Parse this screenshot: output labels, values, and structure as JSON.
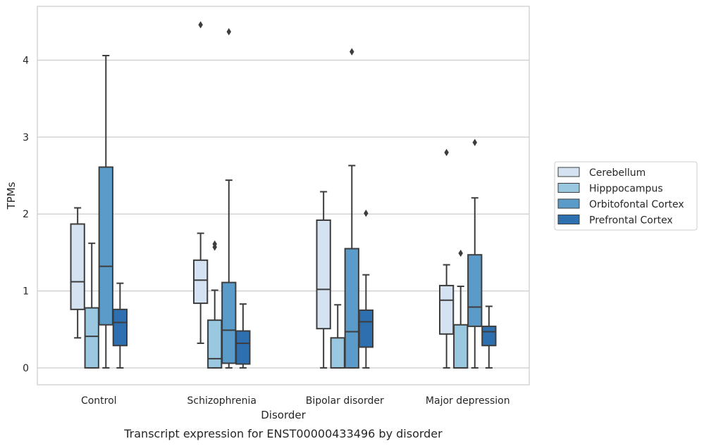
{
  "chart_data": {
    "type": "box",
    "xlabel": "Disorder",
    "ylabel": "TPMs",
    "caption": "Transcript expression for ENST00000433496 by disorder",
    "ylim": [
      -0.22,
      4.7
    ],
    "yticks": [
      "0",
      "1",
      "2",
      "3",
      "4"
    ],
    "grid": true,
    "legend_position": "right",
    "categories": [
      "Control",
      "Schizophrenia",
      "Bipolar disorder",
      "Major depression"
    ],
    "series": [
      {
        "name": "Cerebellum",
        "color": "#d4e2f1",
        "boxes": [
          {
            "whisker_low": 0.39,
            "q1": 0.76,
            "median": 1.12,
            "q3": 1.87,
            "whisker_high": 2.08,
            "outliers": []
          },
          {
            "whisker_low": 0.32,
            "q1": 0.84,
            "median": 1.14,
            "q3": 1.4,
            "whisker_high": 1.75,
            "outliers": [
              4.46
            ]
          },
          {
            "whisker_low": 0.0,
            "q1": 0.51,
            "median": 1.02,
            "q3": 1.92,
            "whisker_high": 2.29,
            "outliers": []
          },
          {
            "whisker_low": 0.0,
            "q1": 0.44,
            "median": 0.88,
            "q3": 1.07,
            "whisker_high": 1.34,
            "outliers": [
              2.8
            ]
          }
        ]
      },
      {
        "name": "Hipppocampus",
        "color": "#9ac8e0",
        "boxes": [
          {
            "whisker_low": 0.0,
            "q1": 0.0,
            "median": 0.41,
            "q3": 0.78,
            "whisker_high": 1.62,
            "outliers": []
          },
          {
            "whisker_low": 0.0,
            "q1": 0.0,
            "median": 0.12,
            "q3": 0.62,
            "whisker_high": 1.01,
            "outliers": [
              1.57,
              1.61
            ]
          },
          {
            "whisker_low": 0.0,
            "q1": 0.0,
            "median": 0.0,
            "q3": 0.39,
            "whisker_high": 0.82,
            "outliers": []
          },
          {
            "whisker_low": 0.0,
            "q1": 0.0,
            "median": 0.0,
            "q3": 0.56,
            "whisker_high": 1.06,
            "outliers": [
              1.49
            ]
          }
        ]
      },
      {
        "name": "Orbitofontal Cortex",
        "color": "#5b9bc9",
        "boxes": [
          {
            "whisker_low": 0.0,
            "q1": 0.56,
            "median": 1.32,
            "q3": 2.61,
            "whisker_high": 4.06,
            "outliers": []
          },
          {
            "whisker_low": 0.0,
            "q1": 0.06,
            "median": 0.49,
            "q3": 1.11,
            "whisker_high": 2.44,
            "outliers": [
              4.37
            ]
          },
          {
            "whisker_low": 0.0,
            "q1": 0.0,
            "median": 0.47,
            "q3": 1.55,
            "whisker_high": 2.63,
            "outliers": [
              4.11
            ]
          },
          {
            "whisker_low": 0.0,
            "q1": 0.54,
            "median": 0.79,
            "q3": 1.47,
            "whisker_high": 2.21,
            "outliers": [
              2.93
            ]
          }
        ]
      },
      {
        "name": "Prefrontal Cortex",
        "color": "#2e6fb0",
        "boxes": [
          {
            "whisker_low": 0.0,
            "q1": 0.29,
            "median": 0.59,
            "q3": 0.76,
            "whisker_high": 1.1,
            "outliers": []
          },
          {
            "whisker_low": 0.0,
            "q1": 0.05,
            "median": 0.32,
            "q3": 0.48,
            "whisker_high": 0.83,
            "outliers": []
          },
          {
            "whisker_low": 0.0,
            "q1": 0.27,
            "median": 0.6,
            "q3": 0.75,
            "whisker_high": 1.21,
            "outliers": [
              2.01
            ]
          },
          {
            "whisker_low": 0.0,
            "q1": 0.29,
            "median": 0.47,
            "q3": 0.54,
            "whisker_high": 0.8,
            "outliers": []
          }
        ]
      }
    ]
  }
}
